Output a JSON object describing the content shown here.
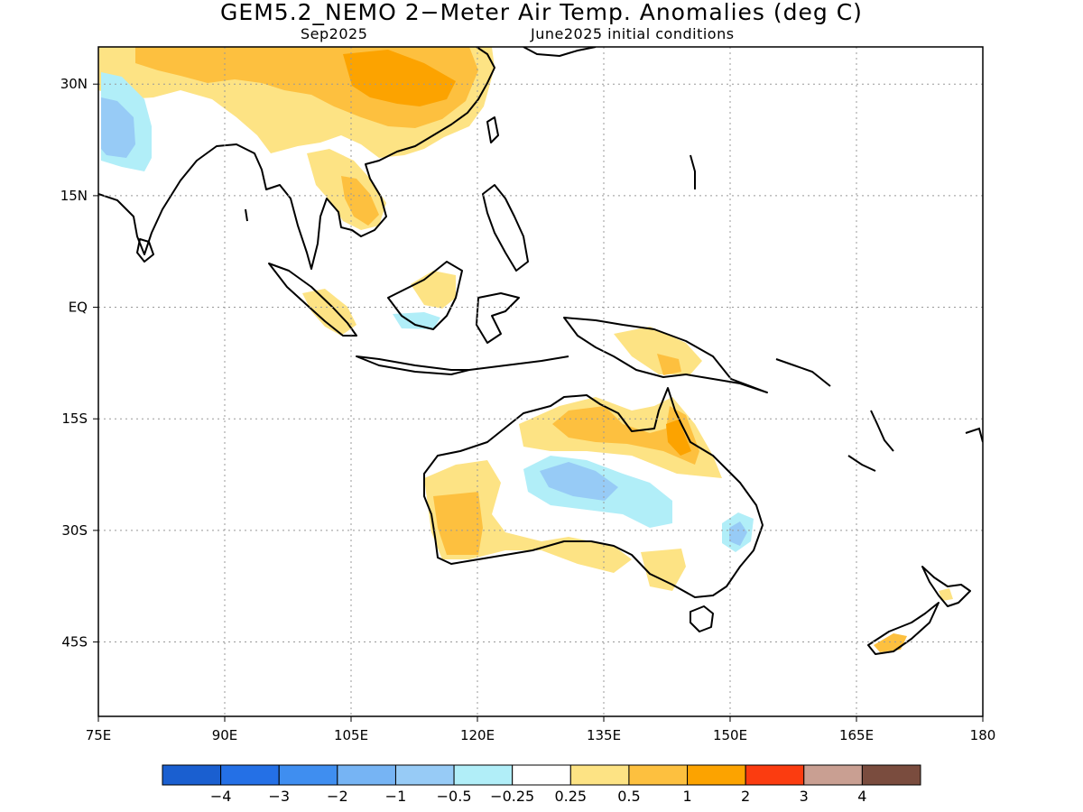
{
  "header": {
    "title": "GEM5.2_NEMO 2−Meter Air Temp. Anomalies (deg C)",
    "valid_month": "Sep2025",
    "init_conditions": "June2025 initial conditions"
  },
  "map": {
    "lon_range": [
      75,
      180
    ],
    "lat_range": [
      -55,
      35
    ],
    "x_ticks": [
      {
        "lon": 75,
        "label": "75E"
      },
      {
        "lon": 90,
        "label": "90E"
      },
      {
        "lon": 105,
        "label": "105E"
      },
      {
        "lon": 120,
        "label": "120E"
      },
      {
        "lon": 135,
        "label": "135E"
      },
      {
        "lon": 150,
        "label": "150E"
      },
      {
        "lon": 165,
        "label": "165E"
      },
      {
        "lon": 180,
        "label": "180"
      }
    ],
    "y_ticks": [
      {
        "lat": 30,
        "label": "30N"
      },
      {
        "lat": 15,
        "label": "15N"
      },
      {
        "lat": 0,
        "label": "EQ"
      },
      {
        "lat": -15,
        "label": "15S"
      },
      {
        "lat": -30,
        "label": "30S"
      },
      {
        "lat": -45,
        "label": "45S"
      }
    ],
    "gridlines": "dotted"
  },
  "colorbar": {
    "colors": [
      "#1a5fd0",
      "#2470e6",
      "#3f8ef0",
      "#76b4f4",
      "#97cbf6",
      "#b1eef8",
      "#ffffff",
      "#fde384",
      "#fdc03f",
      "#fca300",
      "#fb3c10",
      "#c99f92",
      "#7a4c3e"
    ],
    "labels": [
      "−4",
      "−3",
      "−2",
      "−1",
      "−0.5",
      "−0.25",
      "0.25",
      "0.5",
      "1",
      "2",
      "3",
      "4"
    ]
  }
}
